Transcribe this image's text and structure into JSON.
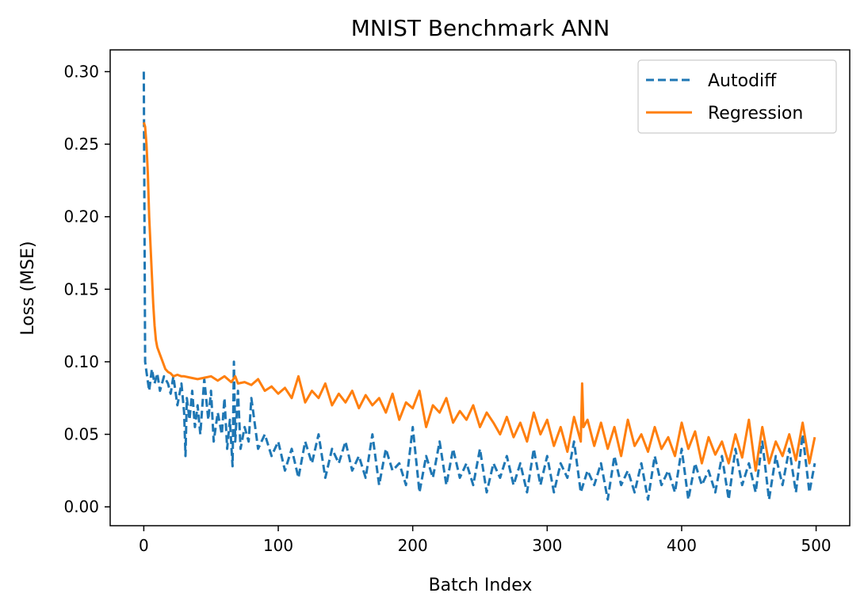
{
  "chart_data": {
    "type": "line",
    "title": "MNIST Benchmark ANN",
    "xlabel": "Batch Index",
    "ylabel": "Loss (MSE)",
    "xlim": [
      -25,
      525
    ],
    "ylim": [
      -0.013,
      0.315
    ],
    "xticks": [
      0,
      100,
      200,
      300,
      400,
      500
    ],
    "xtick_labels": [
      "0",
      "100",
      "200",
      "300",
      "400",
      "500"
    ],
    "yticks": [
      0.0,
      0.05,
      0.1,
      0.15,
      0.2,
      0.25,
      0.3
    ],
    "ytick_labels": [
      "0.00",
      "0.05",
      "0.10",
      "0.15",
      "0.20",
      "0.25",
      "0.30"
    ],
    "grid": false,
    "legend_position": "top-right",
    "series": [
      {
        "name": "Autodiff",
        "color": "#1f77b4",
        "style": "dashed",
        "x": [
          0,
          1,
          2,
          4,
          6,
          8,
          10,
          12,
          15,
          18,
          20,
          22,
          25,
          28,
          30,
          31,
          32,
          34,
          36,
          38,
          40,
          42,
          45,
          48,
          50,
          52,
          55,
          58,
          60,
          62,
          64,
          66,
          67,
          68,
          70,
          72,
          75,
          78,
          80,
          85,
          90,
          95,
          100,
          105,
          110,
          115,
          120,
          125,
          130,
          135,
          140,
          145,
          150,
          155,
          160,
          165,
          170,
          175,
          180,
          185,
          190,
          195,
          200,
          205,
          210,
          215,
          220,
          225,
          230,
          235,
          240,
          245,
          250,
          255,
          260,
          265,
          270,
          275,
          280,
          285,
          290,
          295,
          300,
          305,
          310,
          315,
          320,
          325,
          330,
          335,
          340,
          345,
          350,
          355,
          360,
          365,
          370,
          375,
          380,
          385,
          390,
          395,
          400,
          405,
          410,
          415,
          420,
          425,
          430,
          435,
          440,
          445,
          450,
          455,
          460,
          465,
          470,
          475,
          480,
          485,
          490,
          495,
          499
        ],
        "y": [
          0.3,
          0.1,
          0.093,
          0.08,
          0.095,
          0.085,
          0.092,
          0.08,
          0.09,
          0.085,
          0.078,
          0.09,
          0.07,
          0.085,
          0.065,
          0.035,
          0.075,
          0.06,
          0.08,
          0.055,
          0.07,
          0.05,
          0.088,
          0.06,
          0.08,
          0.045,
          0.065,
          0.05,
          0.075,
          0.04,
          0.06,
          0.028,
          0.1,
          0.045,
          0.08,
          0.04,
          0.055,
          0.045,
          0.075,
          0.04,
          0.05,
          0.035,
          0.045,
          0.025,
          0.04,
          0.02,
          0.045,
          0.03,
          0.05,
          0.02,
          0.04,
          0.03,
          0.045,
          0.025,
          0.035,
          0.02,
          0.05,
          0.015,
          0.04,
          0.025,
          0.03,
          0.015,
          0.055,
          0.01,
          0.035,
          0.02,
          0.045,
          0.015,
          0.04,
          0.02,
          0.03,
          0.015,
          0.04,
          0.01,
          0.03,
          0.02,
          0.035,
          0.015,
          0.03,
          0.01,
          0.04,
          0.015,
          0.035,
          0.01,
          0.03,
          0.02,
          0.045,
          0.01,
          0.025,
          0.015,
          0.03,
          0.005,
          0.035,
          0.015,
          0.025,
          0.01,
          0.03,
          0.005,
          0.035,
          0.015,
          0.025,
          0.01,
          0.04,
          0.005,
          0.03,
          0.015,
          0.025,
          0.01,
          0.035,
          0.005,
          0.04,
          0.015,
          0.03,
          0.01,
          0.045,
          0.005,
          0.035,
          0.015,
          0.04,
          0.01,
          0.05,
          0.01,
          0.03
        ]
      },
      {
        "name": "Regression",
        "color": "#ff7f0e",
        "style": "solid",
        "x": [
          0,
          1,
          2,
          3,
          4,
          5,
          6,
          7,
          8,
          9,
          10,
          12,
          14,
          16,
          18,
          20,
          22,
          25,
          28,
          30,
          35,
          40,
          45,
          50,
          55,
          60,
          65,
          68,
          70,
          75,
          80,
          85,
          90,
          95,
          100,
          105,
          110,
          115,
          120,
          125,
          130,
          135,
          140,
          145,
          150,
          155,
          160,
          165,
          170,
          175,
          180,
          185,
          190,
          195,
          200,
          205,
          210,
          215,
          220,
          225,
          230,
          235,
          240,
          245,
          250,
          255,
          260,
          265,
          270,
          275,
          280,
          285,
          290,
          295,
          300,
          305,
          310,
          315,
          320,
          325,
          326,
          327,
          330,
          335,
          340,
          345,
          350,
          355,
          360,
          365,
          370,
          375,
          380,
          385,
          390,
          395,
          400,
          405,
          410,
          415,
          420,
          425,
          430,
          435,
          440,
          445,
          450,
          455,
          460,
          465,
          470,
          475,
          480,
          485,
          490,
          495,
          499
        ],
        "y": [
          0.265,
          0.262,
          0.25,
          0.23,
          0.2,
          0.18,
          0.16,
          0.14,
          0.125,
          0.115,
          0.11,
          0.105,
          0.1,
          0.095,
          0.093,
          0.092,
          0.09,
          0.091,
          0.09,
          0.09,
          0.089,
          0.088,
          0.089,
          0.09,
          0.087,
          0.09,
          0.086,
          0.09,
          0.085,
          0.086,
          0.084,
          0.088,
          0.08,
          0.083,
          0.078,
          0.082,
          0.075,
          0.09,
          0.072,
          0.08,
          0.075,
          0.085,
          0.07,
          0.078,
          0.072,
          0.08,
          0.068,
          0.077,
          0.07,
          0.075,
          0.065,
          0.078,
          0.06,
          0.072,
          0.068,
          0.08,
          0.055,
          0.07,
          0.065,
          0.075,
          0.058,
          0.066,
          0.06,
          0.07,
          0.055,
          0.065,
          0.058,
          0.05,
          0.062,
          0.048,
          0.058,
          0.045,
          0.065,
          0.05,
          0.06,
          0.042,
          0.055,
          0.038,
          0.062,
          0.045,
          0.085,
          0.055,
          0.06,
          0.042,
          0.058,
          0.04,
          0.055,
          0.035,
          0.06,
          0.042,
          0.05,
          0.038,
          0.055,
          0.04,
          0.048,
          0.035,
          0.058,
          0.04,
          0.052,
          0.03,
          0.048,
          0.036,
          0.045,
          0.03,
          0.05,
          0.034,
          0.06,
          0.025,
          0.055,
          0.03,
          0.045,
          0.035,
          0.05,
          0.032,
          0.058,
          0.03,
          0.048
        ]
      }
    ]
  }
}
